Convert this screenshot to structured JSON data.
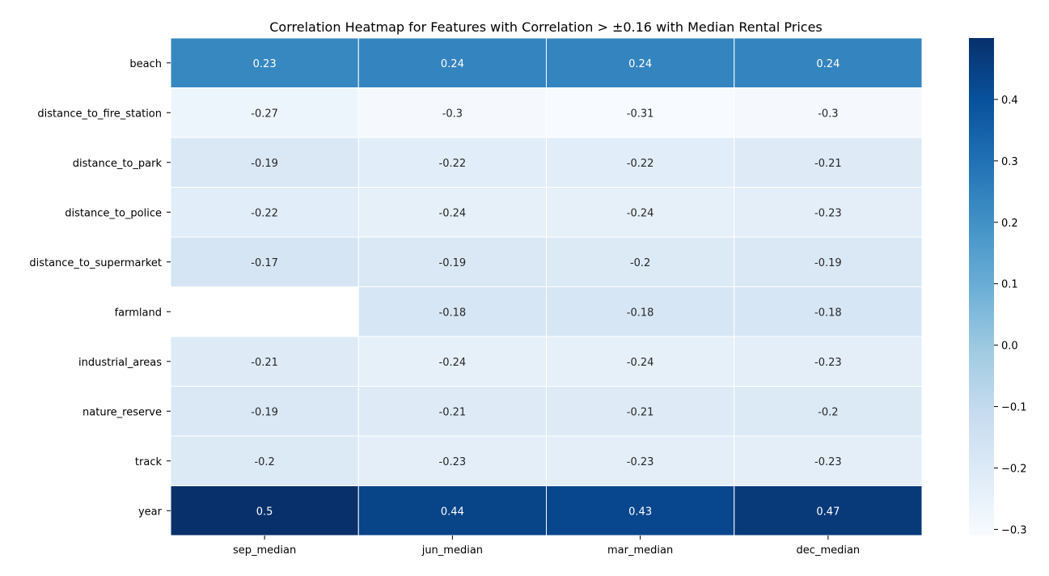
{
  "chart_data": {
    "type": "heatmap",
    "title": "Correlation Heatmap for Features with Correlation > ±0.16 with Median Rental Prices",
    "rows": [
      "beach",
      "distance_to_fire_station",
      "distance_to_park",
      "distance_to_police",
      "distance_to_supermarket",
      "farmland",
      "industrial_areas",
      "nature_reserve",
      "track",
      "year"
    ],
    "columns": [
      "sep_median",
      "jun_median",
      "mar_median",
      "dec_median"
    ],
    "values": [
      [
        0.23,
        0.24,
        0.24,
        0.24
      ],
      [
        -0.27,
        -0.3,
        -0.31,
        -0.3
      ],
      [
        -0.19,
        -0.22,
        -0.22,
        -0.21
      ],
      [
        -0.22,
        -0.24,
        -0.24,
        -0.23
      ],
      [
        -0.17,
        -0.19,
        -0.2,
        -0.19
      ],
      [
        null,
        -0.18,
        -0.18,
        -0.18
      ],
      [
        -0.21,
        -0.24,
        -0.24,
        -0.23
      ],
      [
        -0.19,
        -0.21,
        -0.21,
        -0.2
      ],
      [
        -0.2,
        -0.23,
        -0.23,
        -0.23
      ],
      [
        0.5,
        0.44,
        0.43,
        0.47
      ]
    ],
    "colormap": "Blues",
    "vmin": -0.31,
    "vmax": 0.5,
    "colorbar_ticks": [
      "0.4",
      "0.3",
      "0.2",
      "0.1",
      "0.0",
      "−0.1",
      "−0.2",
      "−0.3"
    ],
    "colorbar_tick_values": [
      0.4,
      0.3,
      0.2,
      0.1,
      0.0,
      -0.1,
      -0.2,
      -0.3
    ],
    "grid": false,
    "cell_separator_color": "#ffffff"
  }
}
